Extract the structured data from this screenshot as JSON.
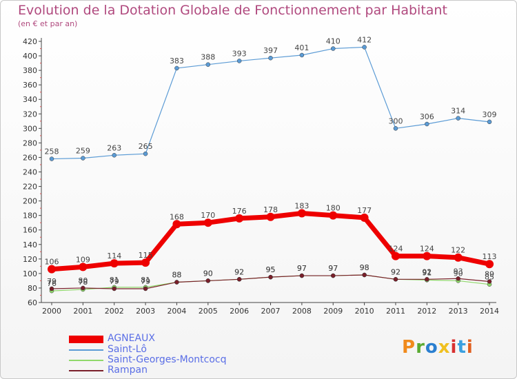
{
  "header": {
    "title": "Evolution de la Dotation Globale de Fonctionnement par Habitant",
    "subtitle": "(en € et par an)"
  },
  "logo": {
    "text": "Proxiti",
    "colors": [
      "#f08a1c",
      "#5aaa32",
      "#2a7fd0",
      "#f0c020",
      "#d83030",
      "#3aa0e0",
      "#e06020"
    ]
  },
  "chart_data": {
    "type": "line",
    "title": "Evolution de la Dotation Globale de Fonctionnement par Habitant",
    "subtitle": "(en € et par an)",
    "xlabel": "",
    "ylabel": "",
    "categories": [
      "2000",
      "2001",
      "2002",
      "2003",
      "2004",
      "2005",
      "2006",
      "2007",
      "2008",
      "2009",
      "2010",
      "2011",
      "2012",
      "2013",
      "2014"
    ],
    "yticks": [
      60,
      80,
      100,
      120,
      140,
      160,
      180,
      200,
      220,
      240,
      260,
      280,
      300,
      320,
      340,
      360,
      380,
      400,
      420
    ],
    "ylim": [
      60,
      420
    ],
    "grid": false,
    "legend_position": "bottom-left",
    "series": [
      {
        "name": "Saint-Lô",
        "color": "#5b9bd5",
        "values": [
          258,
          259,
          263,
          265,
          383,
          388,
          393,
          397,
          401,
          410,
          412,
          300,
          306,
          314,
          309
        ]
      },
      {
        "name": "Saint-Georges-Montcocq",
        "color": "#8fd86a",
        "values": [
          76,
          78,
          81,
          81,
          88,
          90,
          92,
          95,
          97,
          97,
          98,
          92,
          91,
          90,
          85
        ]
      },
      {
        "name": "Rampan",
        "color": "#7a1f2a",
        "values": [
          79,
          80,
          79,
          79,
          88,
          90,
          92,
          95,
          97,
          97,
          98,
          92,
          92,
          93,
          89
        ]
      },
      {
        "name": "AGNEAUX",
        "color": "#ee0000",
        "values": [
          106,
          109,
          114,
          115,
          168,
          170,
          176,
          178,
          183,
          180,
          177,
          124,
          124,
          122,
          113
        ]
      }
    ],
    "legend": [
      "AGNEAUX",
      "Saint-Lô",
      "Saint-Georges-Montcocq",
      "Rampan"
    ]
  }
}
